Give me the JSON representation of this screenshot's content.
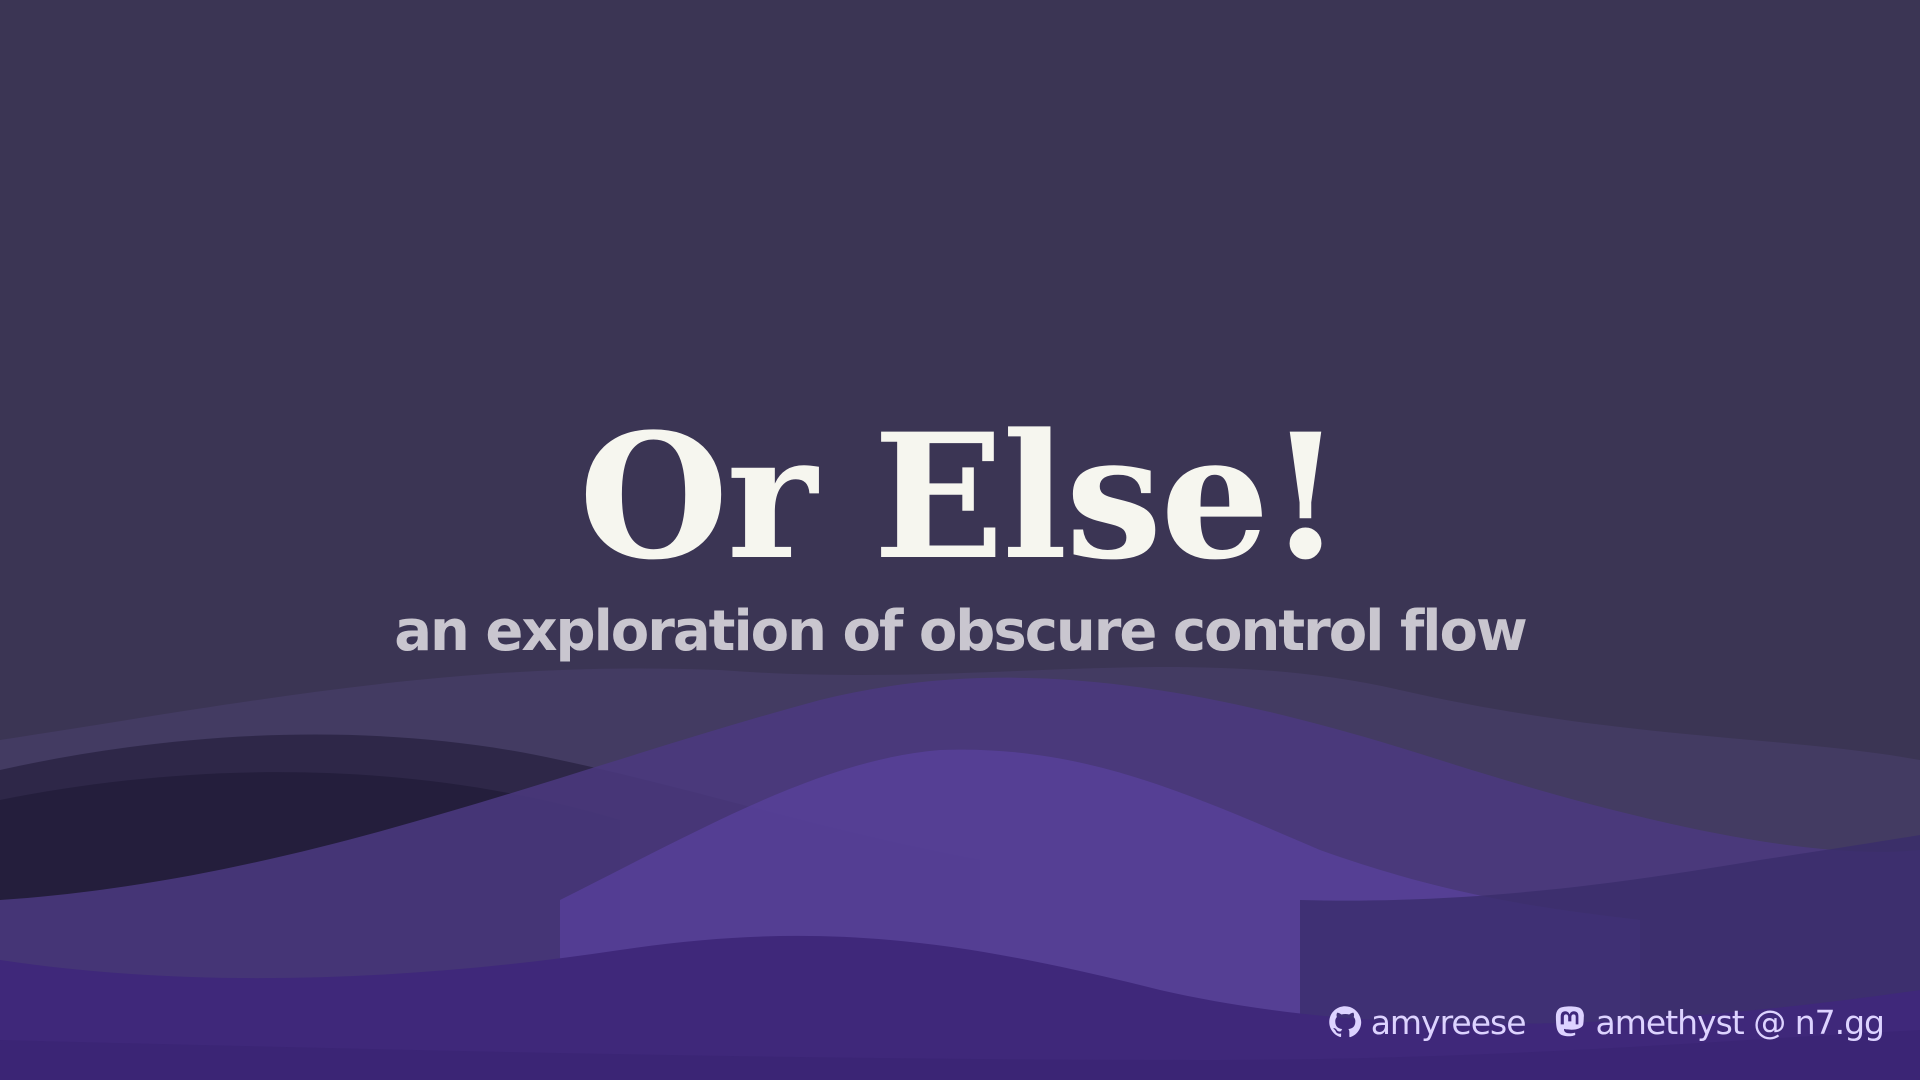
{
  "slide": {
    "title": "Or Else!",
    "subtitle": "an exploration of obscure control flow"
  },
  "footer": {
    "github": {
      "icon": "github-icon",
      "handle": "amyreese"
    },
    "mastodon": {
      "icon": "mastodon-icon",
      "handle": "amethyst @ n7.gg"
    }
  },
  "colors": {
    "background": "#3b3554",
    "title": "#f6f6ef",
    "subtitle": "#c9c6cf",
    "footer_text": "#ddd3ff",
    "wave_dark": "#241f3d",
    "wave_mid": "#4a3a7a",
    "wave_light": "#5e42a0",
    "wave_base": "#3f287a"
  }
}
